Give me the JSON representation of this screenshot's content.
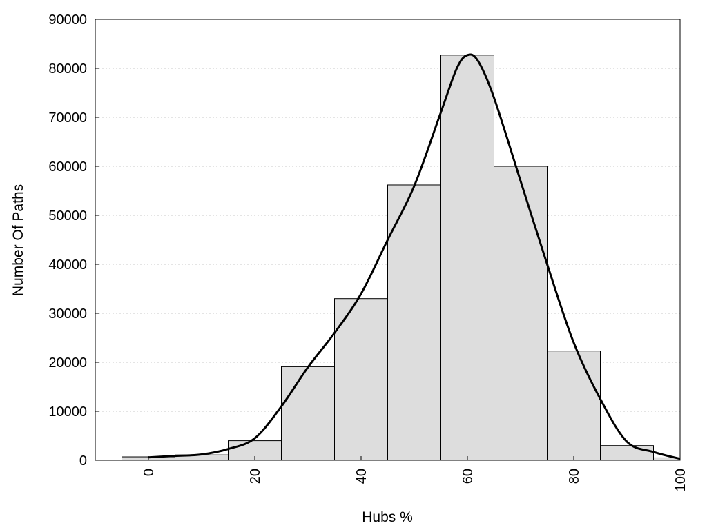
{
  "chart_data": {
    "type": "bar",
    "title": "",
    "xlabel": "Hubs %",
    "ylabel": "Number Of Paths",
    "xlim": [
      -10,
      100
    ],
    "ylim": [
      0,
      90000
    ],
    "x_ticks": [
      0,
      20,
      40,
      60,
      80,
      100
    ],
    "y_ticks": [
      0,
      10000,
      20000,
      30000,
      40000,
      50000,
      60000,
      70000,
      80000,
      90000
    ],
    "grid": "horizontal dotted",
    "bar_color": "#dddddd",
    "bar_edge_color": "#000000",
    "bins": [
      {
        "center": 0,
        "value": 700
      },
      {
        "center": 10,
        "value": 1100
      },
      {
        "center": 20,
        "value": 4000
      },
      {
        "center": 30,
        "value": 19100
      },
      {
        "center": 40,
        "value": 33000
      },
      {
        "center": 50,
        "value": 56200
      },
      {
        "center": 60,
        "value": 82700
      },
      {
        "center": 70,
        "value": 60000
      },
      {
        "center": 80,
        "value": 22300
      },
      {
        "center": 90,
        "value": 3000
      },
      {
        "center": 100,
        "value": 500
      }
    ],
    "bin_width": 10,
    "density_curve": {
      "x": [
        0,
        5,
        10,
        15,
        20,
        25,
        30,
        35,
        40,
        45,
        50,
        55,
        58,
        60,
        62,
        65,
        70,
        75,
        80,
        85,
        90,
        95,
        100
      ],
      "y": [
        600,
        900,
        1200,
        2300,
        4500,
        11000,
        19000,
        26000,
        34000,
        45000,
        56000,
        71000,
        80000,
        82700,
        81500,
        74000,
        57000,
        40000,
        24000,
        12500,
        3800,
        1700,
        300
      ]
    }
  }
}
